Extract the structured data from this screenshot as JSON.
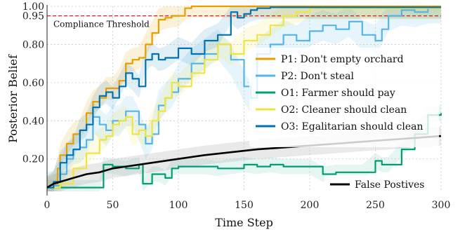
{
  "chart_data": {
    "type": "line",
    "xlabel": "Time Step",
    "ylabel": "Posterior Belief",
    "xlim": [
      0,
      300
    ],
    "ylim": [
      0.03,
      1.0
    ],
    "xticks": [
      0,
      50,
      100,
      150,
      200,
      250,
      300
    ],
    "xtick_labels": [
      "0",
      "50",
      "100",
      "150",
      "200",
      "250",
      "300"
    ],
    "yticks": [
      0.2,
      0.4,
      0.6,
      0.8,
      0.95,
      1.0
    ],
    "ytick_labels": [
      "0.20",
      "0.40",
      "0.60",
      "0.80",
      "0.95",
      "1.00"
    ],
    "grid": true,
    "threshold": {
      "value": 0.95,
      "label": "Compliance Threshold",
      "color": "#e41a1c"
    },
    "legend_position": "center-right",
    "series": [
      {
        "name": "P1:  Don't empty orchard",
        "color": "#e69f00",
        "x": [
          0,
          5,
          8,
          10,
          15,
          20,
          25,
          30,
          35,
          40,
          45,
          50,
          55,
          60,
          65,
          70,
          75,
          80,
          85,
          90,
          95,
          100,
          105,
          110,
          120,
          140,
          160,
          200,
          300
        ],
        "y": [
          0.05,
          0.07,
          0.15,
          0.22,
          0.28,
          0.33,
          0.35,
          0.44,
          0.5,
          0.52,
          0.57,
          0.57,
          0.61,
          0.7,
          0.72,
          0.73,
          0.8,
          0.86,
          0.93,
          0.94,
          0.95,
          0.95,
          0.99,
          1.0,
          1.0,
          1.0,
          1.0,
          1.0,
          1.0
        ]
      },
      {
        "name": "P2:  Don't steal",
        "color": "#56b4e9",
        "x": [
          0,
          5,
          10,
          15,
          20,
          25,
          30,
          35,
          40,
          45,
          50,
          55,
          60,
          65,
          70,
          75,
          80,
          85,
          90,
          95,
          100,
          110,
          120,
          130,
          140,
          150,
          155,
          160,
          170,
          180,
          190,
          200,
          210,
          220,
          230,
          240,
          250,
          255,
          260,
          270,
          280,
          290,
          300
        ],
        "y": [
          0.05,
          0.06,
          0.12,
          0.2,
          0.25,
          0.26,
          0.3,
          0.42,
          0.38,
          0.35,
          0.4,
          0.4,
          0.45,
          0.45,
          0.38,
          0.28,
          0.33,
          0.48,
          0.52,
          0.55,
          0.62,
          0.7,
          0.75,
          0.8,
          0.72,
          0.58,
          0.52,
          0.75,
          0.8,
          0.85,
          0.82,
          0.87,
          0.9,
          0.88,
          0.92,
          0.85,
          0.82,
          0.88,
          0.95,
          0.98,
          0.97,
          0.99,
          0.99
        ]
      },
      {
        "name": "O1:  Farmer should pay",
        "color": "#009e73",
        "x": [
          0,
          10,
          20,
          30,
          40,
          43,
          50,
          60,
          70,
          73,
          80,
          85,
          90,
          95,
          100,
          120,
          130,
          150,
          160,
          170,
          180,
          190,
          200,
          210,
          220,
          230,
          240,
          250,
          255,
          260,
          270,
          280,
          290,
          300
        ],
        "y": [
          0.05,
          0.05,
          0.05,
          0.05,
          0.05,
          0.17,
          0.16,
          0.15,
          0.17,
          0.07,
          0.12,
          0.12,
          0.1,
          0.15,
          0.16,
          0.16,
          0.15,
          0.17,
          0.16,
          0.17,
          0.16,
          0.16,
          0.16,
          0.12,
          0.13,
          0.13,
          0.13,
          0.19,
          0.17,
          0.17,
          0.25,
          0.33,
          0.43,
          0.44
        ]
      },
      {
        "name": "O2:  Cleaner should clean",
        "color": "#f0e442",
        "x": [
          0,
          10,
          20,
          30,
          40,
          45,
          50,
          55,
          60,
          65,
          70,
          75,
          80,
          85,
          90,
          95,
          100,
          110,
          120,
          130,
          140,
          150,
          160,
          170,
          180,
          190,
          200,
          300
        ],
        "y": [
          0.05,
          0.07,
          0.15,
          0.23,
          0.3,
          0.32,
          0.38,
          0.4,
          0.42,
          0.33,
          0.35,
          0.32,
          0.4,
          0.45,
          0.52,
          0.6,
          0.58,
          0.65,
          0.72,
          0.8,
          0.75,
          0.82,
          0.85,
          0.9,
          0.95,
          0.97,
          0.99,
          0.99
        ]
      },
      {
        "name": "O3:  Egalitarian should clean",
        "color": "#0072b2",
        "x": [
          0,
          5,
          10,
          15,
          20,
          25,
          30,
          35,
          40,
          45,
          50,
          55,
          60,
          65,
          70,
          75,
          80,
          85,
          90,
          100,
          110,
          120,
          130,
          140,
          145,
          150,
          155,
          160,
          170,
          180,
          190,
          200,
          300
        ],
        "y": [
          0.05,
          0.08,
          0.18,
          0.22,
          0.25,
          0.35,
          0.38,
          0.47,
          0.53,
          0.55,
          0.52,
          0.58,
          0.65,
          0.62,
          0.58,
          0.72,
          0.75,
          0.72,
          0.73,
          0.78,
          0.75,
          0.82,
          0.85,
          0.97,
          0.94,
          0.96,
          0.98,
          0.99,
          0.995,
          0.995,
          0.995,
          0.995,
          0.995
        ]
      },
      {
        "name": "False Postives",
        "color": "#000000",
        "x": [
          0,
          5,
          10,
          20,
          30,
          40,
          50,
          60,
          80,
          100,
          120,
          140,
          160,
          180,
          200,
          220,
          240,
          260,
          280,
          300
        ],
        "y": [
          0.05,
          0.07,
          0.08,
          0.1,
          0.12,
          0.13,
          0.15,
          0.16,
          0.18,
          0.2,
          0.22,
          0.235,
          0.25,
          0.26,
          0.27,
          0.28,
          0.29,
          0.3,
          0.31,
          0.32
        ]
      }
    ]
  }
}
